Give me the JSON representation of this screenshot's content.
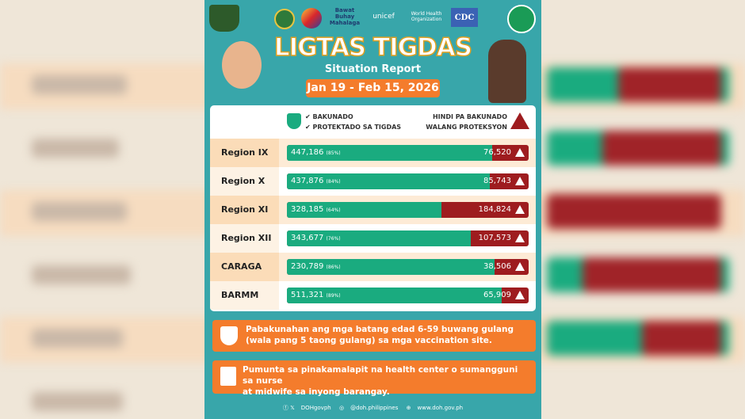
{
  "header": {
    "logos": [
      "CHIKITING LIGTAS",
      "DOH",
      "Bagong Pilipinas",
      "Sa Bagong Pilipinas Bawat Buhay Mahalaga",
      "unicef for every child",
      "World Health Organization Philippines",
      "CDC"
    ],
    "title": "LIGTAS TIGDAS",
    "subtitle": "Situation Report",
    "date_range": "Jan 19 - Feb 15, 2026"
  },
  "legend": {
    "vaccinated_line1": "BAKUNADO",
    "vaccinated_line2": "PROTEKTADO SA TIGDAS",
    "unvaccinated_line1": "HINDI PA BAKUNADO",
    "unvaccinated_line2": "WALANG PROTEKSYON"
  },
  "colors": {
    "vaccinated": "#1aab7f",
    "unvaccinated": "#9e1c1f",
    "accent": "#f47c2c",
    "background": "#38a6aa"
  },
  "rows": [
    {
      "region": "Region IX",
      "vaccinated": "447,186",
      "percent": "(85%)",
      "unvaccinated": "76,520",
      "fill": 85
    },
    {
      "region": "Region X",
      "vaccinated": "437,876",
      "percent": "(84%)",
      "unvaccinated": "85,743",
      "fill": 84
    },
    {
      "region": "Region XI",
      "vaccinated": "328,185",
      "percent": "(64%)",
      "unvaccinated": "184,824",
      "fill": 64
    },
    {
      "region": "Region XII",
      "vaccinated": "343,677",
      "percent": "(76%)",
      "unvaccinated": "107,573",
      "fill": 76
    },
    {
      "region": "CARAGA",
      "vaccinated": "230,789",
      "percent": "(86%)",
      "unvaccinated": "38,506",
      "fill": 86
    },
    {
      "region": "BARMM",
      "vaccinated": "511,321",
      "percent": "(89%)",
      "unvaccinated": "65,909",
      "fill": 89
    }
  ],
  "notes": [
    {
      "icon": "shield-vaccine-icon",
      "line1": "Pabakunahan ang mga batang edad 6-59 buwang gulang",
      "line2": "(wala pang 5 taong gulang) sa mga vaccination site."
    },
    {
      "icon": "hospital-icon",
      "line1": "Pumunta sa pinakamalapit na health center o sumangguni sa nurse",
      "line2": "at midwife sa inyong barangay."
    }
  ],
  "footer": {
    "social": "DOHgovph",
    "instagram": "@doh.philippines",
    "website": "www.doh.gov.ph"
  }
}
